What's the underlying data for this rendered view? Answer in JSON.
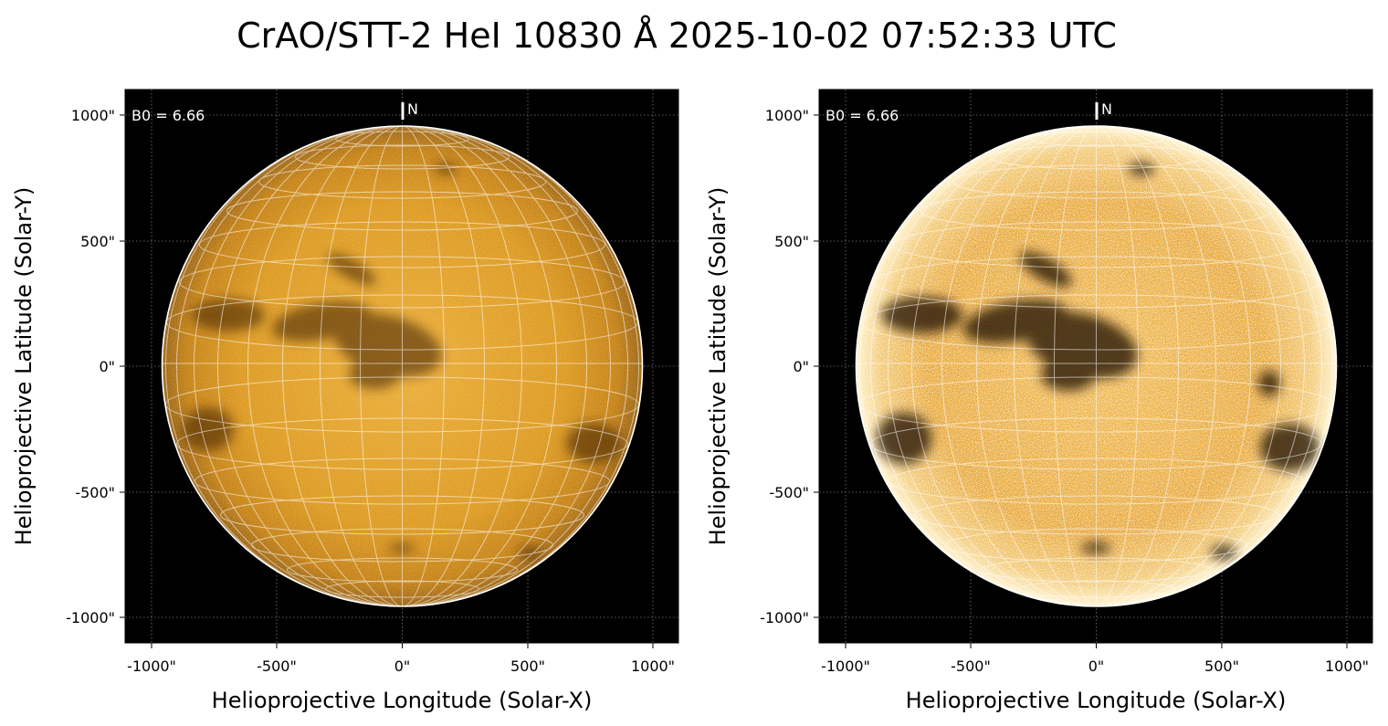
{
  "figure": {
    "title": "CrAO/STT-2 HeI 10830 Å 2025-10-02 07:52:33 UTC"
  },
  "panels": [
    {
      "b0_label": "B0 = 6.66",
      "north_label": "N",
      "xlabel": "Helioprojective Longitude (Solar-X)",
      "ylabel": "Helioprojective Latitude (Solar-Y)",
      "xticks": [
        "-1000\"",
        "-500\"",
        "0\"",
        "500\"",
        "1000\""
      ],
      "yticks": [
        "1000\"",
        "500\"",
        "0\"",
        "-500\"",
        "-1000\""
      ],
      "variant": "standard"
    },
    {
      "b0_label": "B0 = 6.66",
      "north_label": "N",
      "xlabel": "Helioprojective Longitude (Solar-X)",
      "ylabel": "Helioprojective Latitude (Solar-Y)",
      "xticks": [
        "-1000\"",
        "-500\"",
        "0\"",
        "500\"",
        "1000\""
      ],
      "yticks": [
        "1000\"",
        "500\"",
        "0\"",
        "-500\"",
        "-1000\""
      ],
      "variant": "enhanced"
    }
  ],
  "colors": {
    "background": "#000000",
    "disk_orange": "#d18a00",
    "disk_edge": "#7a4a00",
    "grid_white": "#ffffff"
  }
}
